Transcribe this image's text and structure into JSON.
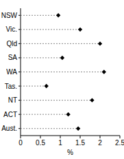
{
  "chart_data": {
    "type": "dot",
    "orientation": "horizontal",
    "categories": [
      "NSW",
      "Vic.",
      "Qld",
      "SA",
      "WA",
      "Tas.",
      "NT",
      "ACT",
      "Aust."
    ],
    "values": [
      0.95,
      1.5,
      2.0,
      1.05,
      2.1,
      0.65,
      1.8,
      1.2,
      1.45
    ],
    "color": "#000000",
    "marker": "diamond",
    "line_style": "dashed",
    "x_label": "%",
    "xlim": [
      0,
      2.5
    ],
    "xticks": [
      0,
      0.5,
      1,
      1.5,
      2,
      2.5
    ]
  }
}
